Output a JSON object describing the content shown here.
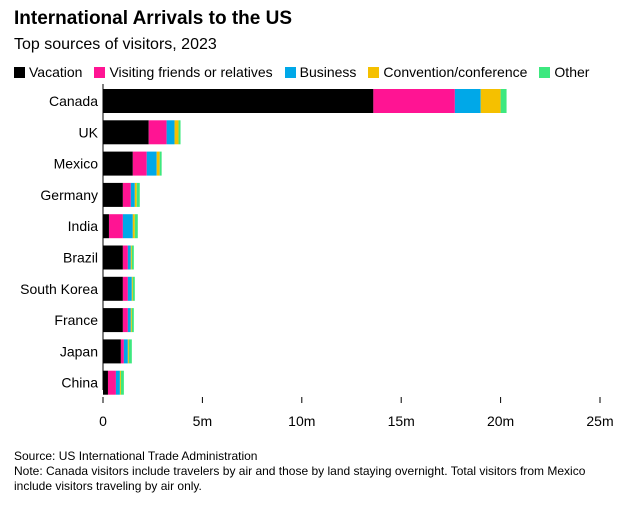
{
  "title": "International Arrivals to the US",
  "subtitle": "Top sources of visitors, 2023",
  "footer": {
    "source": "Source: US International Trade Administration",
    "note": "Note: Canada visitors include travelers by air and those by land staying overnight. Total visitors from Mexico include visitors traveling by air only."
  },
  "chart_data": {
    "type": "bar",
    "orientation": "horizontal",
    "stacked": true,
    "categories": [
      "Canada",
      "UK",
      "Mexico",
      "Germany",
      "India",
      "Brazil",
      "South Korea",
      "France",
      "Japan",
      "China"
    ],
    "series": [
      {
        "name": "Vacation",
        "color": "#000000",
        "values": [
          13.6,
          2.3,
          1.5,
          1.0,
          0.3,
          1.0,
          1.0,
          1.0,
          0.9,
          0.25
        ]
      },
      {
        "name": "Visiting friends or relatives",
        "color": "#ff1493",
        "values": [
          4.1,
          0.9,
          0.7,
          0.4,
          0.7,
          0.25,
          0.25,
          0.25,
          0.15,
          0.4
        ]
      },
      {
        "name": "Business",
        "color": "#00a8e8",
        "values": [
          1.3,
          0.4,
          0.5,
          0.2,
          0.5,
          0.15,
          0.2,
          0.15,
          0.2,
          0.2
        ]
      },
      {
        "name": "Convention/conference",
        "color": "#f5c000",
        "values": [
          1.0,
          0.2,
          0.15,
          0.1,
          0.1,
          0.05,
          0.05,
          0.05,
          0.05,
          0.05
        ]
      },
      {
        "name": "Other",
        "color": "#3de87f",
        "values": [
          0.3,
          0.1,
          0.1,
          0.15,
          0.15,
          0.1,
          0.1,
          0.1,
          0.15,
          0.15
        ]
      }
    ],
    "xlim": [
      0,
      25
    ],
    "xticks": [
      0,
      5,
      10,
      15,
      20,
      25
    ],
    "xtick_labels": [
      "0",
      "5m",
      "10m",
      "15m",
      "20m",
      "25m"
    ],
    "xlabel": "",
    "ylabel": "",
    "grid": false,
    "legend_position": "top"
  }
}
